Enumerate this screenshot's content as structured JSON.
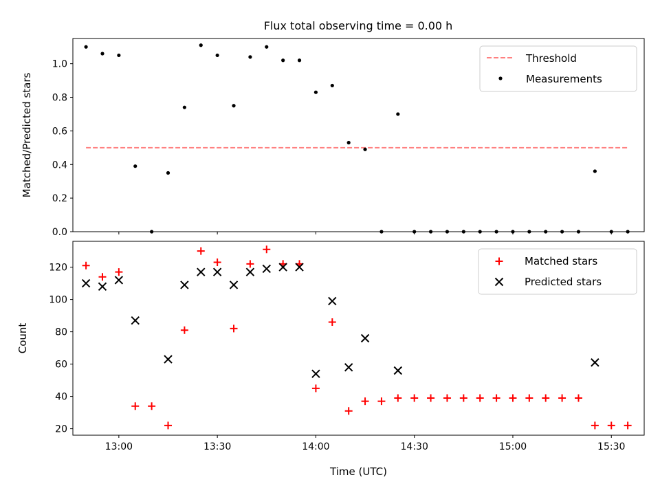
{
  "chart_data": [
    {
      "type": "scatter",
      "title": "Flux total observing time = 0.00 h",
      "ylabel": "Matched/Predicted stars",
      "ylim": [
        0,
        1.15
      ],
      "yticks": [
        0.0,
        0.2,
        0.4,
        0.6,
        0.8,
        1.0
      ],
      "ytick_labels": [
        "0.0",
        "0.2",
        "0.4",
        "0.6",
        "0.8",
        "1.0"
      ],
      "xticks_minutes": [
        780,
        810,
        840,
        870,
        900,
        930
      ],
      "legend_position": "top-right",
      "legend": [
        {
          "label": "Threshold",
          "style": "dashed-line",
          "color": "#ff8080"
        },
        {
          "label": "Measurements",
          "style": "dot",
          "color": "#000000"
        }
      ],
      "threshold": {
        "value": 0.5,
        "x_start": "12:50",
        "x_end": "15:35"
      },
      "series": [
        {
          "name": "Measurements",
          "color": "#000000",
          "x": [
            "12:50",
            "12:55",
            "13:00",
            "13:05",
            "13:10",
            "13:15",
            "13:20",
            "13:25",
            "13:30",
            "13:35",
            "13:40",
            "13:45",
            "13:50",
            "13:55",
            "14:00",
            "14:05",
            "14:10",
            "14:15",
            "14:20",
            "14:25",
            "14:30",
            "14:35",
            "14:40",
            "14:45",
            "14:50",
            "14:55",
            "15:00",
            "15:05",
            "15:10",
            "15:15",
            "15:20",
            "15:25",
            "15:30",
            "15:35"
          ],
          "y": [
            1.1,
            1.06,
            1.05,
            0.39,
            0.0,
            0.35,
            0.74,
            1.11,
            1.05,
            0.75,
            1.04,
            1.1,
            1.02,
            1.02,
            0.83,
            0.87,
            0.53,
            0.49,
            0.0,
            0.7,
            0.0,
            0.0,
            0.0,
            0.0,
            0.0,
            0.0,
            0.0,
            0.0,
            0.0,
            0.0,
            0.0,
            0.36,
            0.0,
            0.0
          ]
        }
      ]
    },
    {
      "type": "scatter",
      "xlabel": "Time (UTC)",
      "ylabel": "Count",
      "ylim": [
        16,
        136
      ],
      "yticks": [
        20,
        40,
        60,
        80,
        100,
        120
      ],
      "ytick_labels": [
        "20",
        "40",
        "60",
        "80",
        "100",
        "120"
      ],
      "xticks_minutes": [
        780,
        810,
        840,
        870,
        900,
        930
      ],
      "xtick_labels": [
        "13:00",
        "13:30",
        "14:00",
        "14:30",
        "15:00",
        "15:30"
      ],
      "xlim": [
        "12:46",
        "15:40"
      ],
      "legend_position": "top-right",
      "legend": [
        {
          "label": "Matched stars",
          "marker": "plus",
          "color": "#ff0000"
        },
        {
          "label": "Predicted stars",
          "marker": "cross",
          "color": "#000000"
        }
      ],
      "series": [
        {
          "name": "Matched stars",
          "marker": "plus",
          "color": "#ff0000",
          "x": [
            "12:50",
            "12:55",
            "13:00",
            "13:05",
            "13:10",
            "13:15",
            "13:20",
            "13:25",
            "13:30",
            "13:35",
            "13:40",
            "13:45",
            "13:50",
            "13:55",
            "14:00",
            "14:05",
            "14:10",
            "14:15",
            "14:20",
            "14:25",
            "14:30",
            "14:35",
            "14:40",
            "14:45",
            "14:50",
            "14:55",
            "15:00",
            "15:05",
            "15:10",
            "15:15",
            "15:20",
            "15:25",
            "15:30",
            "15:35"
          ],
          "y": [
            121,
            114,
            117,
            34,
            34,
            22,
            81,
            130,
            123,
            82,
            122,
            131,
            122,
            122,
            45,
            86,
            31,
            37,
            37,
            39,
            39,
            39,
            39,
            39,
            39,
            39,
            39,
            39,
            39,
            39,
            39,
            22,
            22,
            22
          ]
        },
        {
          "name": "Predicted stars",
          "marker": "cross",
          "color": "#000000",
          "x": [
            "12:50",
            "12:55",
            "13:00",
            "13:05",
            "13:15",
            "13:20",
            "13:25",
            "13:30",
            "13:35",
            "13:40",
            "13:45",
            "13:50",
            "13:55",
            "14:00",
            "14:05",
            "14:10",
            "14:15",
            "14:25",
            "15:25"
          ],
          "y": [
            110,
            108,
            112,
            87,
            63,
            109,
            117,
            117,
            109,
            117,
            119,
            120,
            120,
            54,
            99,
            58,
            76,
            56,
            61
          ]
        }
      ]
    }
  ]
}
